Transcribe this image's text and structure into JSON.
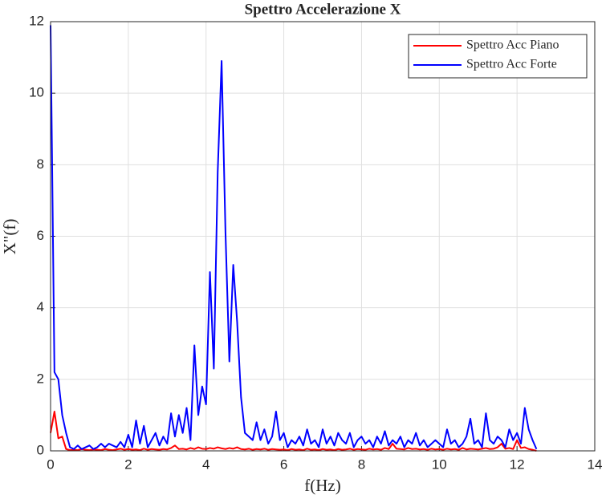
{
  "chart_data": {
    "type": "line",
    "title": "Spettro Accelerazione X",
    "xlabel": "f(Hz)",
    "ylabel": "X\"(f)",
    "xlim": [
      0,
      14
    ],
    "ylim": [
      0,
      12
    ],
    "xticks": [
      0,
      2,
      4,
      6,
      8,
      10,
      12,
      14
    ],
    "yticks": [
      0,
      2,
      4,
      6,
      8,
      10,
      12
    ],
    "grid": true,
    "legend": "northeast",
    "x": [
      0,
      0.1,
      0.2,
      0.3,
      0.4,
      0.5,
      0.6,
      0.7,
      0.8,
      0.9,
      1,
      1.1,
      1.2,
      1.3,
      1.4,
      1.5,
      1.6,
      1.7,
      1.8,
      1.9,
      2,
      2.1,
      2.2,
      2.3,
      2.4,
      2.5,
      2.6,
      2.7,
      2.8,
      2.9,
      3,
      3.1,
      3.2,
      3.3,
      3.4,
      3.5,
      3.6,
      3.7,
      3.8,
      3.9,
      4,
      4.1,
      4.2,
      4.3,
      4.4,
      4.5,
      4.6,
      4.7,
      4.8,
      4.9,
      5,
      5.1,
      5.2,
      5.3,
      5.4,
      5.5,
      5.6,
      5.7,
      5.8,
      5.9,
      6,
      6.1,
      6.2,
      6.3,
      6.4,
      6.5,
      6.6,
      6.7,
      6.8,
      6.9,
      7,
      7.1,
      7.2,
      7.3,
      7.4,
      7.5,
      7.6,
      7.7,
      7.8,
      7.9,
      8,
      8.1,
      8.2,
      8.3,
      8.4,
      8.5,
      8.6,
      8.7,
      8.8,
      8.9,
      9,
      9.1,
      9.2,
      9.3,
      9.4,
      9.5,
      9.6,
      9.7,
      9.8,
      9.9,
      10,
      10.1,
      10.2,
      10.3,
      10.4,
      10.5,
      10.6,
      10.7,
      10.8,
      10.9,
      11,
      11.1,
      11.2,
      11.3,
      11.4,
      11.5,
      11.6,
      11.7,
      11.8,
      11.9,
      12,
      12.1,
      12.2,
      12.3,
      12.4,
      12.5
    ],
    "series": [
      {
        "name": "Spettro Acc Piano",
        "color": "#ff0000",
        "values": [
          0.5,
          1.1,
          0.35,
          0.4,
          0.05,
          0.02,
          0.03,
          0.02,
          0.05,
          0.03,
          0.02,
          0.04,
          0.03,
          0.02,
          0.05,
          0.03,
          0.02,
          0.04,
          0.06,
          0.03,
          0.05,
          0.03,
          0.04,
          0.02,
          0.06,
          0.03,
          0.05,
          0.04,
          0.03,
          0.05,
          0.04,
          0.08,
          0.15,
          0.05,
          0.06,
          0.04,
          0.08,
          0.05,
          0.1,
          0.06,
          0.05,
          0.08,
          0.06,
          0.1,
          0.07,
          0.05,
          0.08,
          0.06,
          0.1,
          0.05,
          0.04,
          0.06,
          0.03,
          0.05,
          0.04,
          0.06,
          0.03,
          0.05,
          0.04,
          0.03,
          0.04,
          0.02,
          0.05,
          0.03,
          0.04,
          0.02,
          0.06,
          0.03,
          0.04,
          0.02,
          0.05,
          0.03,
          0.04,
          0.02,
          0.05,
          0.03,
          0.04,
          0.06,
          0.03,
          0.05,
          0.04,
          0.03,
          0.06,
          0.04,
          0.05,
          0.03,
          0.08,
          0.05,
          0.2,
          0.06,
          0.05,
          0.04,
          0.08,
          0.05,
          0.06,
          0.04,
          0.05,
          0.03,
          0.06,
          0.04,
          0.05,
          0.03,
          0.06,
          0.04,
          0.05,
          0.03,
          0.08,
          0.04,
          0.06,
          0.05,
          0.04,
          0.06,
          0.08,
          0.05,
          0.06,
          0.1,
          0.2,
          0.06,
          0.08,
          0.05,
          0.3,
          0.08,
          0.1,
          0.05,
          0.03,
          0
        ]
      },
      {
        "name": "Spettro Acc Forte",
        "color": "#0000ff",
        "values": [
          11.9,
          2.2,
          2.0,
          1.0,
          0.5,
          0.1,
          0.05,
          0.15,
          0.05,
          0.1,
          0.15,
          0.05,
          0.1,
          0.2,
          0.1,
          0.2,
          0.15,
          0.1,
          0.25,
          0.1,
          0.45,
          0.1,
          0.85,
          0.2,
          0.7,
          0.1,
          0.3,
          0.5,
          0.15,
          0.4,
          0.2,
          1.05,
          0.4,
          1.0,
          0.5,
          1.2,
          0.3,
          2.95,
          1.0,
          1.8,
          1.3,
          5.0,
          2.3,
          7.8,
          10.9,
          6.1,
          2.5,
          5.2,
          3.6,
          1.5,
          0.5,
          0.4,
          0.3,
          0.8,
          0.3,
          0.6,
          0.2,
          0.4,
          1.1,
          0.3,
          0.5,
          0.1,
          0.3,
          0.2,
          0.4,
          0.15,
          0.6,
          0.2,
          0.3,
          0.1,
          0.6,
          0.2,
          0.4,
          0.15,
          0.5,
          0.3,
          0.2,
          0.5,
          0.1,
          0.3,
          0.4,
          0.2,
          0.3,
          0.1,
          0.4,
          0.2,
          0.55,
          0.15,
          0.3,
          0.2,
          0.4,
          0.1,
          0.3,
          0.2,
          0.5,
          0.15,
          0.3,
          0.1,
          0.2,
          0.3,
          0.2,
          0.1,
          0.6,
          0.2,
          0.3,
          0.1,
          0.2,
          0.4,
          0.9,
          0.2,
          0.3,
          0.1,
          1.05,
          0.3,
          0.2,
          0.4,
          0.3,
          0.1,
          0.6,
          0.3,
          0.5,
          0.2,
          1.2,
          0.6,
          0.3,
          0.05
        ]
      }
    ]
  }
}
